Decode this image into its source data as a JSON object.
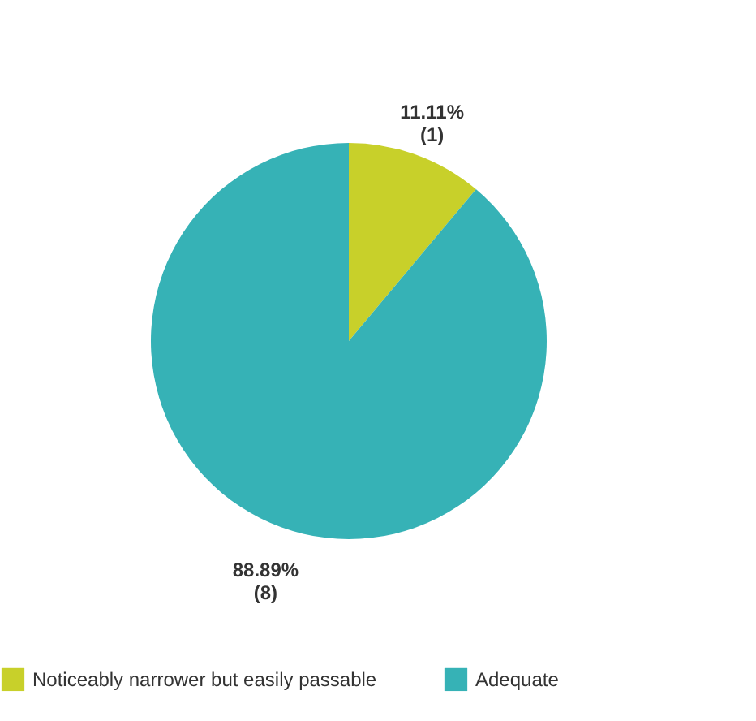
{
  "chart_data": {
    "type": "pie",
    "categories": [
      "Noticeably narrower but easily passable",
      "Adequate"
    ],
    "values": [
      1,
      8
    ],
    "colors": [
      "#c8d02a",
      "#36b2b6"
    ],
    "value_labels": [
      "11.11%\n(1)",
      "88.89%\n(8)"
    ],
    "legend": "bottom"
  }
}
